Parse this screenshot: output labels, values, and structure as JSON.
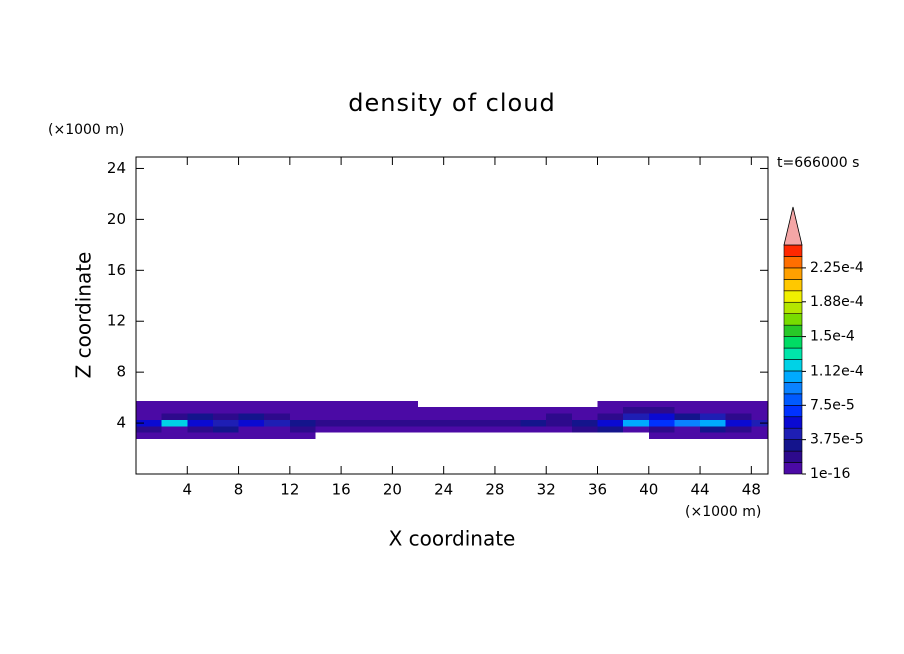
{
  "chart_data": {
    "type": "contour",
    "title": "density of cloud",
    "x_label": "X coordinate",
    "y_label": "Z coordinate",
    "x_unit": "(×1000 m)",
    "y_unit": "(×1000 m)",
    "annotation": "t=666000 s",
    "xlim": [
      0,
      49.3
    ],
    "ylim": [
      0,
      24.9
    ],
    "xticks": [
      4,
      8,
      12,
      16,
      20,
      24,
      28,
      32,
      36,
      40,
      44,
      48
    ],
    "yticks": [
      4,
      8,
      12,
      16,
      20,
      24
    ],
    "colorbar": {
      "levels": [
        1e-16,
        1.25e-05,
        2.5e-05,
        3.75e-05,
        5e-05,
        6.25e-05,
        7.5e-05,
        8.75e-05,
        0.0001,
        0.0001125,
        0.000125,
        0.0001375,
        0.00015,
        0.0001625,
        0.000175,
        0.0001875,
        0.0002,
        0.0002125,
        0.000225,
        0.0002375,
        0.00025
      ],
      "colors": [
        "#4b0aa5",
        "#2d0a8c",
        "#14148c",
        "#1e1eb4",
        "#0a0ad2",
        "#0032ff",
        "#005aff",
        "#0a82ff",
        "#00aaff",
        "#00d2e6",
        "#00e6aa",
        "#00dc64",
        "#28c828",
        "#78dc00",
        "#b4e600",
        "#f0f000",
        "#ffc800",
        "#ffa000",
        "#ff6e00",
        "#ff2800"
      ],
      "extend_color": "#f4a6a6",
      "ticks": [
        {
          "value": 1e-16,
          "label": "1e-16"
        },
        {
          "value": 3.75e-05,
          "label": "3.75e-5"
        },
        {
          "value": 7.5e-05,
          "label": "7.5e-5"
        },
        {
          "value": 0.000112,
          "label": "1.12e-4"
        },
        {
          "value": 0.00015,
          "label": "1.5e-4"
        },
        {
          "value": 0.000188,
          "label": "1.88e-4"
        },
        {
          "value": 0.000225,
          "label": "2.25e-4"
        }
      ]
    },
    "field": {
      "x": [
        1,
        3,
        5,
        7,
        9,
        11,
        13,
        15,
        17,
        19,
        21,
        23,
        25,
        27,
        29,
        31,
        33,
        35,
        37,
        39,
        41,
        43,
        45,
        47,
        49
      ],
      "z": [
        3,
        3.5,
        4,
        4.5,
        5,
        5.5
      ],
      "values": [
        [
          5e-06,
          5e-06,
          5e-06,
          5e-06,
          5e-06,
          5e-06,
          5e-06,
          null,
          null,
          null,
          null,
          null,
          null,
          null,
          null,
          null,
          null,
          null,
          null,
          null,
          5e-06,
          5e-06,
          5e-06,
          5e-06,
          5e-06
        ],
        [
          2e-05,
          5e-06,
          2e-05,
          3e-05,
          5e-06,
          5e-06,
          2e-05,
          5e-06,
          5e-06,
          5e-06,
          5e-06,
          5e-06,
          5e-06,
          5e-06,
          5e-06,
          5e-06,
          5e-06,
          2e-05,
          3e-05,
          5e-06,
          2e-05,
          5e-06,
          3e-05,
          2e-05,
          5e-06
        ],
        [
          6e-05,
          0.00012,
          5e-05,
          4e-05,
          5e-05,
          4e-05,
          3e-05,
          2e-05,
          2e-05,
          2e-05,
          2e-05,
          2e-05,
          2e-05,
          1.5e-05,
          2e-05,
          3e-05,
          2e-05,
          3e-05,
          5e-05,
          0.00011,
          7e-05,
          9e-05,
          0.0001,
          6e-05,
          4e-05
        ],
        [
          5e-06,
          2e-05,
          2.5e-05,
          2e-05,
          3e-05,
          2e-05,
          5e-06,
          5e-06,
          5e-06,
          5e-06,
          5e-06,
          5e-06,
          5e-06,
          5e-06,
          5e-06,
          5e-06,
          2e-05,
          5e-06,
          2e-05,
          4e-05,
          6e-05,
          2.5e-05,
          4e-05,
          2e-05,
          5e-06
        ],
        [
          5e-06,
          5e-06,
          5e-06,
          5e-06,
          5e-06,
          5e-06,
          5e-06,
          5e-06,
          5e-06,
          5e-06,
          5e-06,
          5e-06,
          5e-06,
          5e-06,
          5e-06,
          5e-06,
          5e-06,
          5e-06,
          5e-06,
          2e-05,
          2e-05,
          5e-06,
          5e-06,
          5e-06,
          5e-06
        ],
        [
          5e-06,
          5e-06,
          5e-06,
          5e-06,
          5e-06,
          5e-06,
          5e-06,
          5e-06,
          5e-06,
          5e-06,
          5e-06,
          null,
          null,
          null,
          null,
          null,
          null,
          null,
          5e-06,
          5e-06,
          5e-06,
          5e-06,
          5e-06,
          5e-06,
          5e-06
        ]
      ]
    }
  }
}
